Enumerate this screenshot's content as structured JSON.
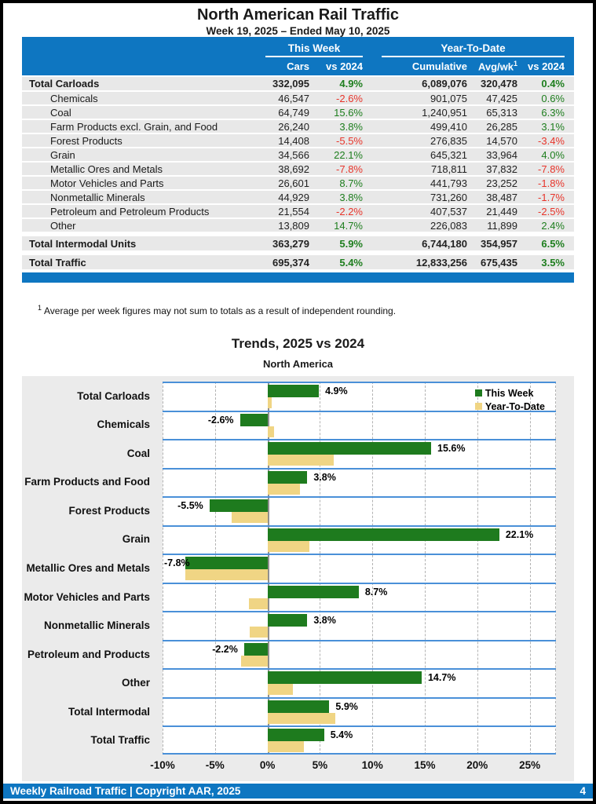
{
  "page": {
    "title": "North American Rail Traffic",
    "subtitle": "Week 19, 2025 – Ended May 10, 2025",
    "footnote_sup": "1",
    "footnote": "Average per week figures may not sum to totals as a result of independent rounding.",
    "footer": {
      "left": "Weekly Railroad Traffic | Copyright AAR, 2025",
      "page_number": "4"
    }
  },
  "colors": {
    "accent_blue": "#0e76c1",
    "band_line_blue": "#4a90d8",
    "positive_green": "#1e7e1e",
    "negative_red": "#e8352b",
    "bar_green": "#1e7b1e",
    "bar_tan": "#f0d584",
    "row_gray": "#e8e8e8",
    "chart_bg_gray": "#ebebeb"
  },
  "table": {
    "group_headers": {
      "this_week": "This Week",
      "ytd": "Year-To-Date"
    },
    "columns": {
      "cars": "Cars",
      "vs2024_week": "vs 2024",
      "cumulative": "Cumulative",
      "avg_wk": "Avg/wk",
      "avg_wk_sup": "1",
      "vs2024_ytd": "vs 2024"
    },
    "rows": [
      {
        "label": "Total Carloads",
        "total": true,
        "gap": false,
        "cars": "332,095",
        "vs_week": "4.9%",
        "cumulative": "6,089,076",
        "avg_wk": "320,478",
        "vs_ytd": "0.4%"
      },
      {
        "label": "Chemicals",
        "total": false,
        "gap": false,
        "cars": "46,547",
        "vs_week": "-2.6%",
        "cumulative": "901,075",
        "avg_wk": "47,425",
        "vs_ytd": "0.6%"
      },
      {
        "label": "Coal",
        "total": false,
        "gap": false,
        "cars": "64,749",
        "vs_week": "15.6%",
        "cumulative": "1,240,951",
        "avg_wk": "65,313",
        "vs_ytd": "6.3%"
      },
      {
        "label": "Farm Products excl. Grain, and Food",
        "total": false,
        "gap": false,
        "cars": "26,240",
        "vs_week": "3.8%",
        "cumulative": "499,410",
        "avg_wk": "26,285",
        "vs_ytd": "3.1%"
      },
      {
        "label": "Forest Products",
        "total": false,
        "gap": false,
        "cars": "14,408",
        "vs_week": "-5.5%",
        "cumulative": "276,835",
        "avg_wk": "14,570",
        "vs_ytd": "-3.4%"
      },
      {
        "label": "Grain",
        "total": false,
        "gap": false,
        "cars": "34,566",
        "vs_week": "22.1%",
        "cumulative": "645,321",
        "avg_wk": "33,964",
        "vs_ytd": "4.0%"
      },
      {
        "label": "Metallic Ores and Metals",
        "total": false,
        "gap": false,
        "cars": "38,692",
        "vs_week": "-7.8%",
        "cumulative": "718,811",
        "avg_wk": "37,832",
        "vs_ytd": "-7.8%"
      },
      {
        "label": "Motor Vehicles and Parts",
        "total": false,
        "gap": false,
        "cars": "26,601",
        "vs_week": "8.7%",
        "cumulative": "441,793",
        "avg_wk": "23,252",
        "vs_ytd": "-1.8%"
      },
      {
        "label": "Nonmetallic Minerals",
        "total": false,
        "gap": false,
        "cars": "44,929",
        "vs_week": "3.8%",
        "cumulative": "731,260",
        "avg_wk": "38,487",
        "vs_ytd": "-1.7%"
      },
      {
        "label": "Petroleum and Petroleum Products",
        "total": false,
        "gap": false,
        "cars": "21,554",
        "vs_week": "-2.2%",
        "cumulative": "407,537",
        "avg_wk": "21,449",
        "vs_ytd": "-2.5%"
      },
      {
        "label": "Other",
        "total": false,
        "gap": false,
        "cars": "13,809",
        "vs_week": "14.7%",
        "cumulative": "226,083",
        "avg_wk": "11,899",
        "vs_ytd": "2.4%"
      },
      {
        "label": "Total Intermodal Units",
        "total": true,
        "gap": true,
        "cars": "363,279",
        "vs_week": "5.9%",
        "cumulative": "6,744,180",
        "avg_wk": "354,957",
        "vs_ytd": "6.5%"
      },
      {
        "label": "Total Traffic",
        "total": true,
        "gap": true,
        "cars": "695,374",
        "vs_week": "5.4%",
        "cumulative": "12,833,256",
        "avg_wk": "675,435",
        "vs_ytd": "3.5%"
      }
    ]
  },
  "chart_data": {
    "type": "bar",
    "orientation": "horizontal",
    "title": "Trends, 2025 vs 2024",
    "subtitle": "North America",
    "categories": [
      "Total Carloads",
      "Chemicals",
      "Coal",
      "Farm Products and Food",
      "Forest Products",
      "Grain",
      "Metallic Ores and Metals",
      "Motor Vehicles and Parts",
      "Nonmetallic Minerals",
      "Petroleum and Products",
      "Other",
      "Total Intermodal",
      "Total Traffic"
    ],
    "series": [
      {
        "name": "This Week",
        "color": "#1e7b1e",
        "values": [
          4.9,
          -2.6,
          15.6,
          3.8,
          -5.5,
          22.1,
          -7.8,
          8.7,
          3.8,
          -2.2,
          14.7,
          5.9,
          5.4
        ],
        "labels": [
          "4.9%",
          "-2.6%",
          "15.6%",
          "3.8%",
          "-5.5%",
          "22.1%",
          "-7.8%",
          "8.7%",
          "3.8%",
          "-2.2%",
          "14.7%",
          "5.9%",
          "5.4%"
        ]
      },
      {
        "name": "Year-To-Date",
        "color": "#f0d584",
        "values": [
          0.4,
          0.6,
          6.3,
          3.1,
          -3.4,
          4.0,
          -7.8,
          -1.8,
          -1.7,
          -2.5,
          2.4,
          6.5,
          3.5
        ]
      }
    ],
    "xlabel": "",
    "ylabel": "",
    "xlim": [
      -10,
      27.5
    ],
    "xticks": {
      "values": [
        -10,
        -5,
        0,
        5,
        10,
        15,
        20,
        25
      ],
      "labels": [
        "-10%",
        "-5%",
        "0%",
        "5%",
        "10%",
        "15%",
        "20%",
        "25%"
      ]
    },
    "grid": "vertical-dashed",
    "legend_position": "top-right-inside"
  }
}
